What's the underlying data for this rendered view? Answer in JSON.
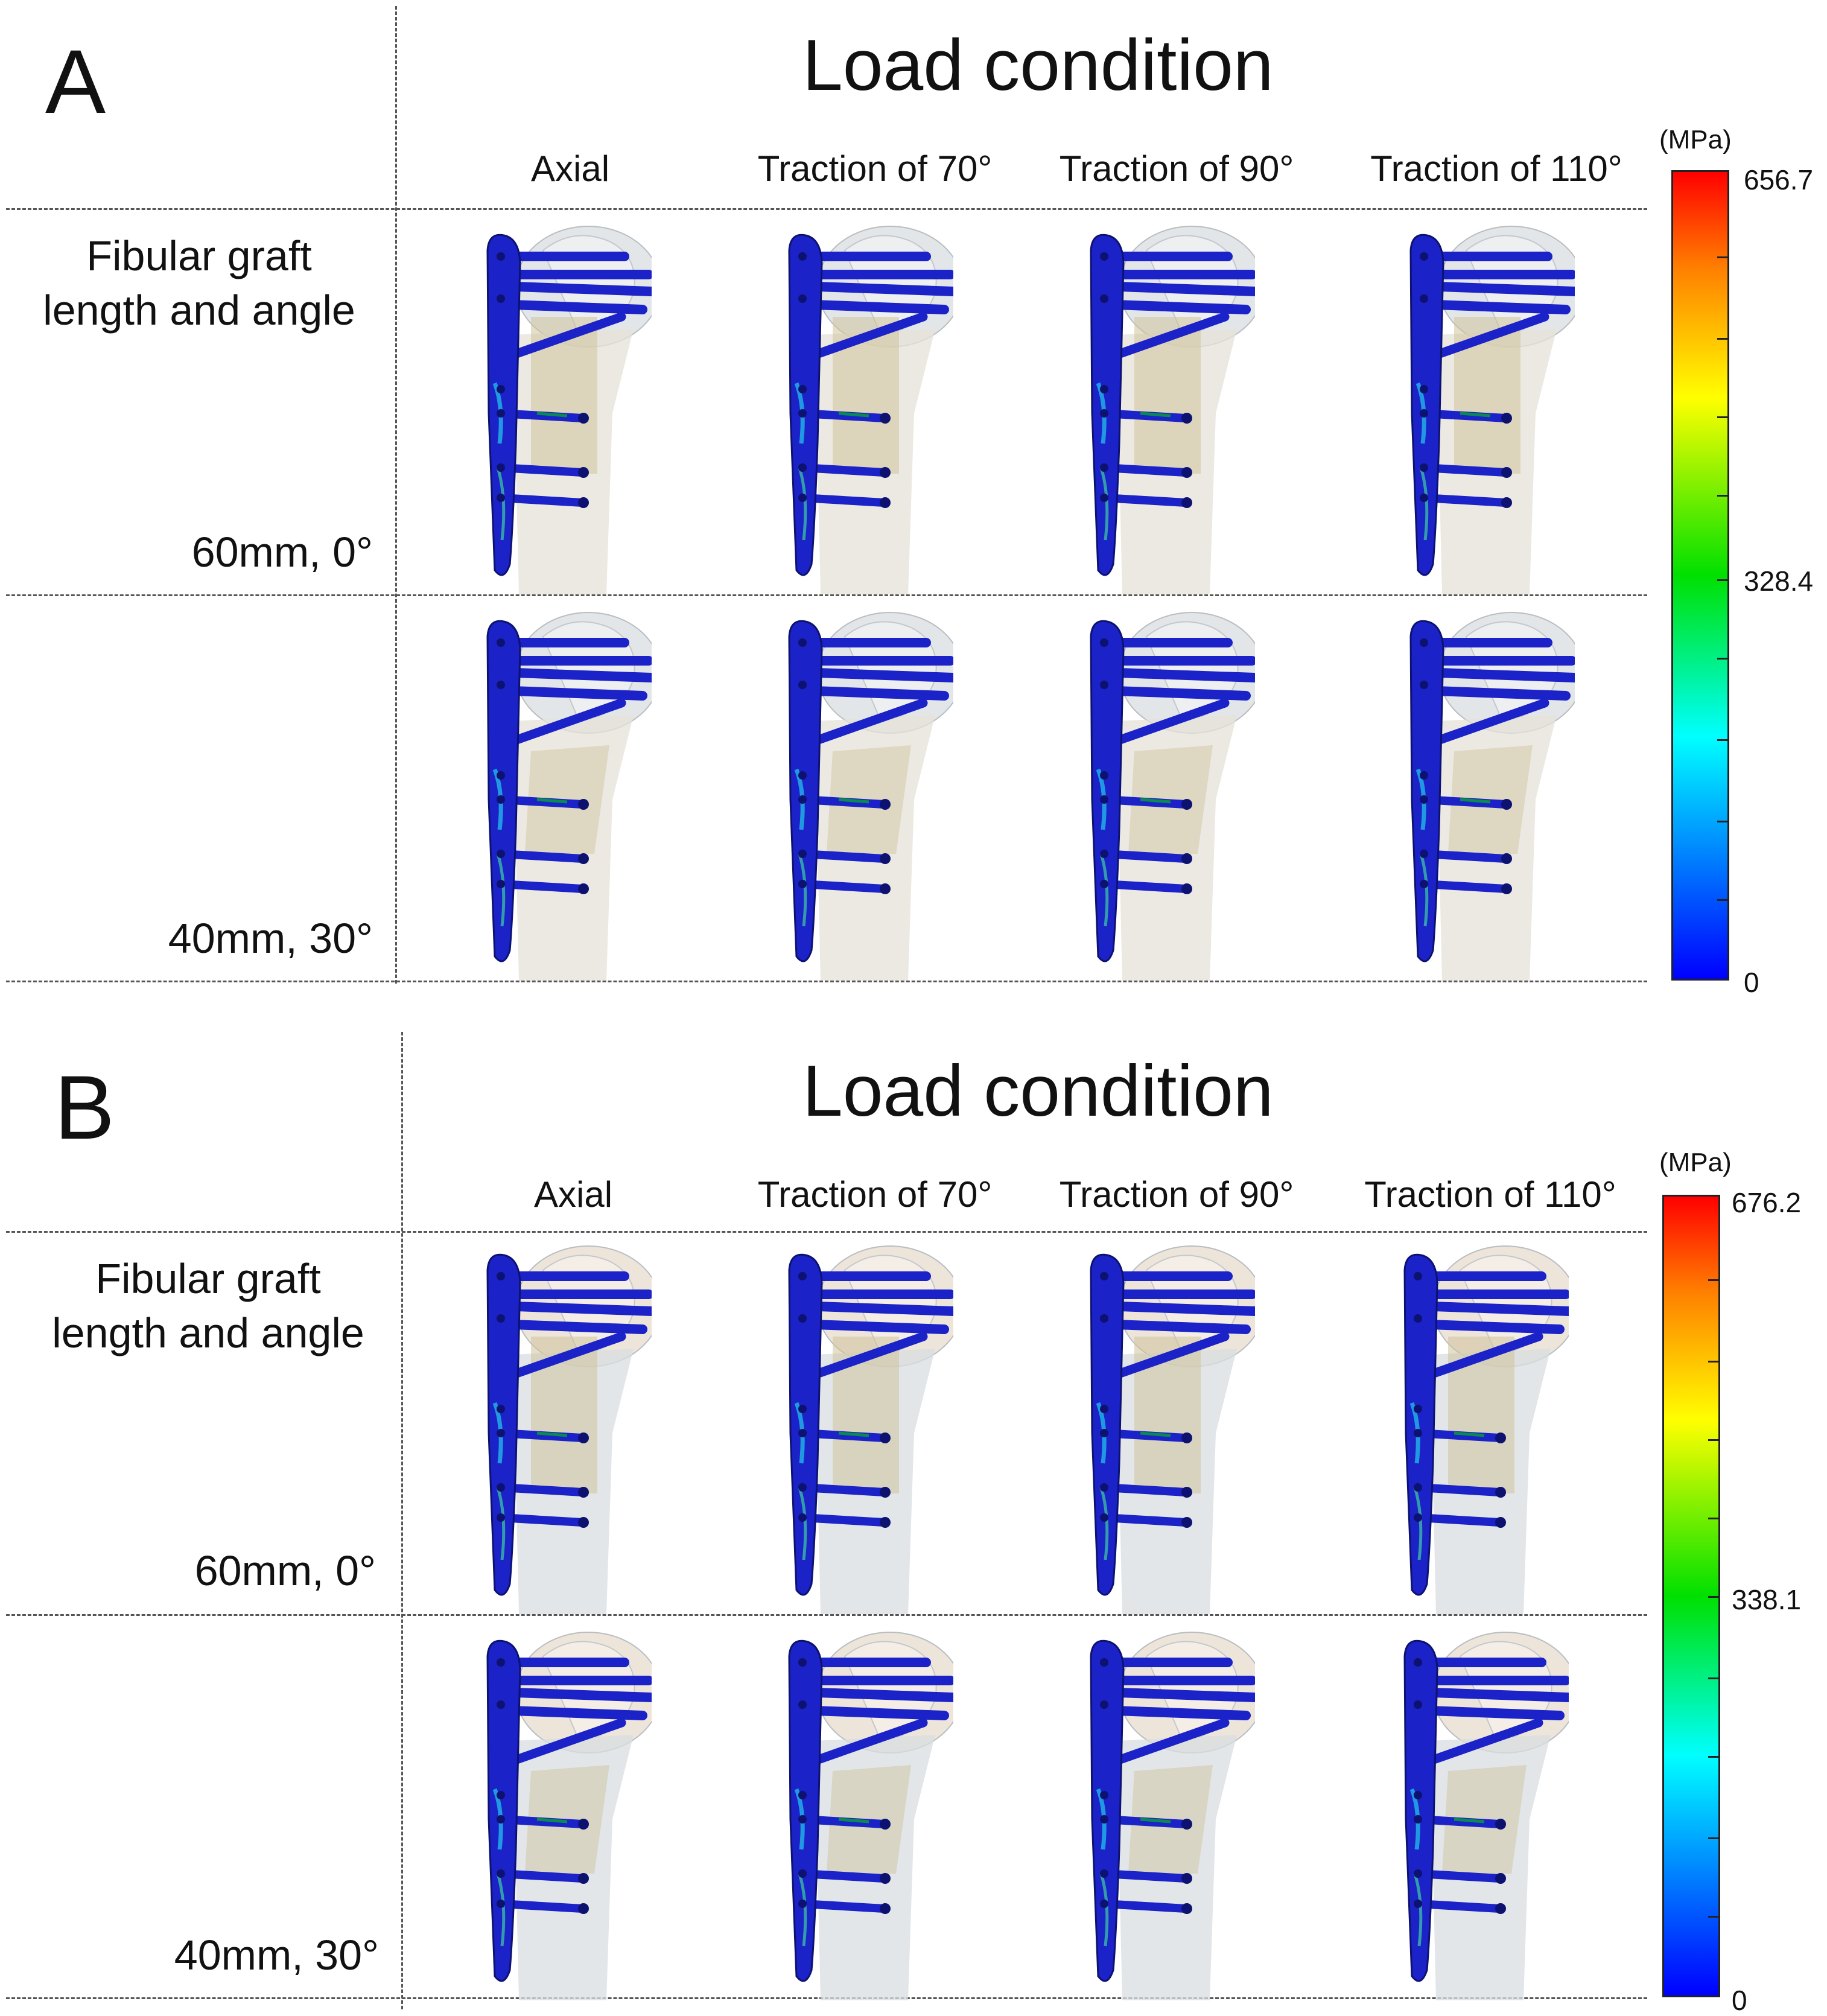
{
  "panels": [
    {
      "letter": "A",
      "title": "Load condition",
      "columns": [
        "Axial",
        "Traction of 70°",
        "Traction of 90°",
        "Traction of 110°"
      ],
      "row_header": "Fibular graft length and angle",
      "rows": [
        "60mm, 0°",
        "40mm, 30°"
      ],
      "colorbar": {
        "unit": "(MPa)",
        "max": "656.7",
        "mid": "328.4",
        "min": "0"
      }
    },
    {
      "letter": "B",
      "title": "Load condition",
      "columns": [
        "Axial",
        "Traction of 70°",
        "Traction of 90°",
        "Traction of 110°"
      ],
      "row_header": "Fibular graft length and angle",
      "rows": [
        "60mm, 0°",
        "40mm, 30°"
      ],
      "colorbar": {
        "unit": "(MPa)",
        "max": "676.2",
        "mid": "338.1",
        "min": "0"
      }
    }
  ],
  "colors": {
    "plate": "#1a22c8",
    "plate_edge": "#0d1270",
    "stress_low": "#0000ff",
    "stress_mid": "#00d000",
    "stress_high": "#ff0000",
    "bone_A": "#d9dde0",
    "bone_B": "#e8dccd",
    "graft": "#cfc29a"
  }
}
